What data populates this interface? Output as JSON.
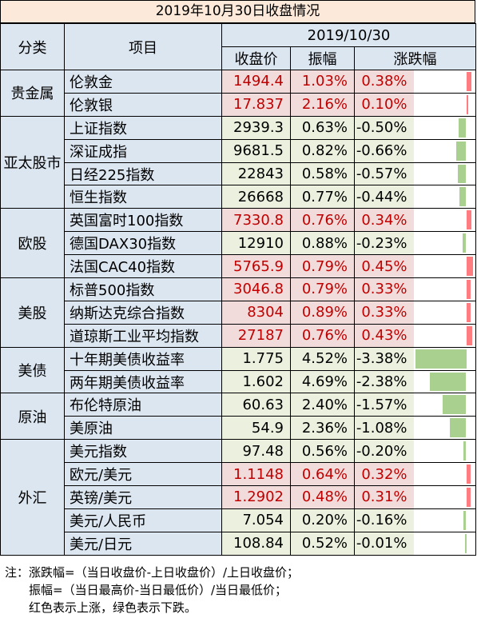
{
  "title": "2019年10月30日收盘情况",
  "header": {
    "category": "分类",
    "item": "项目",
    "date": "2019/10/30",
    "close": "收盘价",
    "amplitude": "振幅",
    "change": "涨跌幅"
  },
  "colors": {
    "up": "#f2dcdb",
    "down": "#ebf1de",
    "up_bar": "#ff7c80",
    "down_bar": "#a9d08e"
  },
  "groups": [
    {
      "name": "贵金属",
      "rows": [
        {
          "item": "伦敦金",
          "close": "1494.4",
          "amp": "1.03%",
          "chg": "0.38%",
          "v": 0.38
        },
        {
          "item": "伦敦银",
          "close": "17.837",
          "amp": "2.16%",
          "chg": "0.10%",
          "v": 0.1
        }
      ]
    },
    {
      "name": "亚太股市",
      "rows": [
        {
          "item": "上证指数",
          "close": "2939.3",
          "amp": "0.63%",
          "chg": "-0.50%",
          "v": -0.5
        },
        {
          "item": "深证成指",
          "close": "9681.5",
          "amp": "0.82%",
          "chg": "-0.66%",
          "v": -0.66
        },
        {
          "item": "日经225指数",
          "close": "22843",
          "amp": "0.58%",
          "chg": "-0.57%",
          "v": -0.57
        },
        {
          "item": "恒生指数",
          "close": "26668",
          "amp": "0.77%",
          "chg": "-0.44%",
          "v": -0.44
        }
      ]
    },
    {
      "name": "欧股",
      "rows": [
        {
          "item": "英国富时100指数",
          "close": "7330.8",
          "amp": "0.76%",
          "chg": "0.34%",
          "v": 0.34
        },
        {
          "item": "德国DAX30指数",
          "close": "12910",
          "amp": "0.88%",
          "chg": "-0.23%",
          "v": -0.23
        },
        {
          "item": "法国CAC40指数",
          "close": "5765.9",
          "amp": "0.79%",
          "chg": "0.45%",
          "v": 0.45
        }
      ]
    },
    {
      "name": "美股",
      "rows": [
        {
          "item": "标普500指数",
          "close": "3046.8",
          "amp": "0.79%",
          "chg": "0.33%",
          "v": 0.33
        },
        {
          "item": "纳斯达克综合指数",
          "close": "8304",
          "amp": "0.89%",
          "chg": "0.33%",
          "v": 0.33
        },
        {
          "item": "道琼斯工业平均指数",
          "close": "27187",
          "amp": "0.76%",
          "chg": "0.43%",
          "v": 0.43
        }
      ]
    },
    {
      "name": "美债",
      "rows": [
        {
          "item": "十年期美债收益率",
          "close": "1.775",
          "amp": "4.52%",
          "chg": "-3.38%",
          "v": -3.38
        },
        {
          "item": "两年期美债收益率",
          "close": "1.602",
          "amp": "4.69%",
          "chg": "-2.38%",
          "v": -2.38
        }
      ]
    },
    {
      "name": "原油",
      "rows": [
        {
          "item": "布伦特原油",
          "close": "60.63",
          "amp": "2.40%",
          "chg": "-1.57%",
          "v": -1.57
        },
        {
          "item": "美原油",
          "close": "54.9",
          "amp": "2.36%",
          "chg": "-1.08%",
          "v": -1.08
        }
      ]
    },
    {
      "name": "外汇",
      "rows": [
        {
          "item": "美元指数",
          "close": "97.48",
          "amp": "0.56%",
          "chg": "-0.20%",
          "v": -0.2
        },
        {
          "item": "欧元/美元",
          "close": "1.1148",
          "amp": "0.64%",
          "chg": "0.32%",
          "v": 0.32
        },
        {
          "item": "英镑/美元",
          "close": "1.2902",
          "amp": "0.48%",
          "chg": "0.31%",
          "v": 0.31
        },
        {
          "item": "美元/人民币",
          "close": "7.054",
          "amp": "0.20%",
          "chg": "-0.16%",
          "v": -0.16
        },
        {
          "item": "美元/日元",
          "close": "108.84",
          "amp": "0.52%",
          "chg": "-0.01%",
          "v": -0.01
        }
      ]
    }
  ],
  "note": {
    "line1": "注：涨跌幅=（当日收盘价-上日收盘价）/上日收盘价；",
    "line2": "　　振幅=（当日最高价-当日最低价）/当日最低价；",
    "line3": "　　红色表示上涨，绿色表示下跌。"
  }
}
